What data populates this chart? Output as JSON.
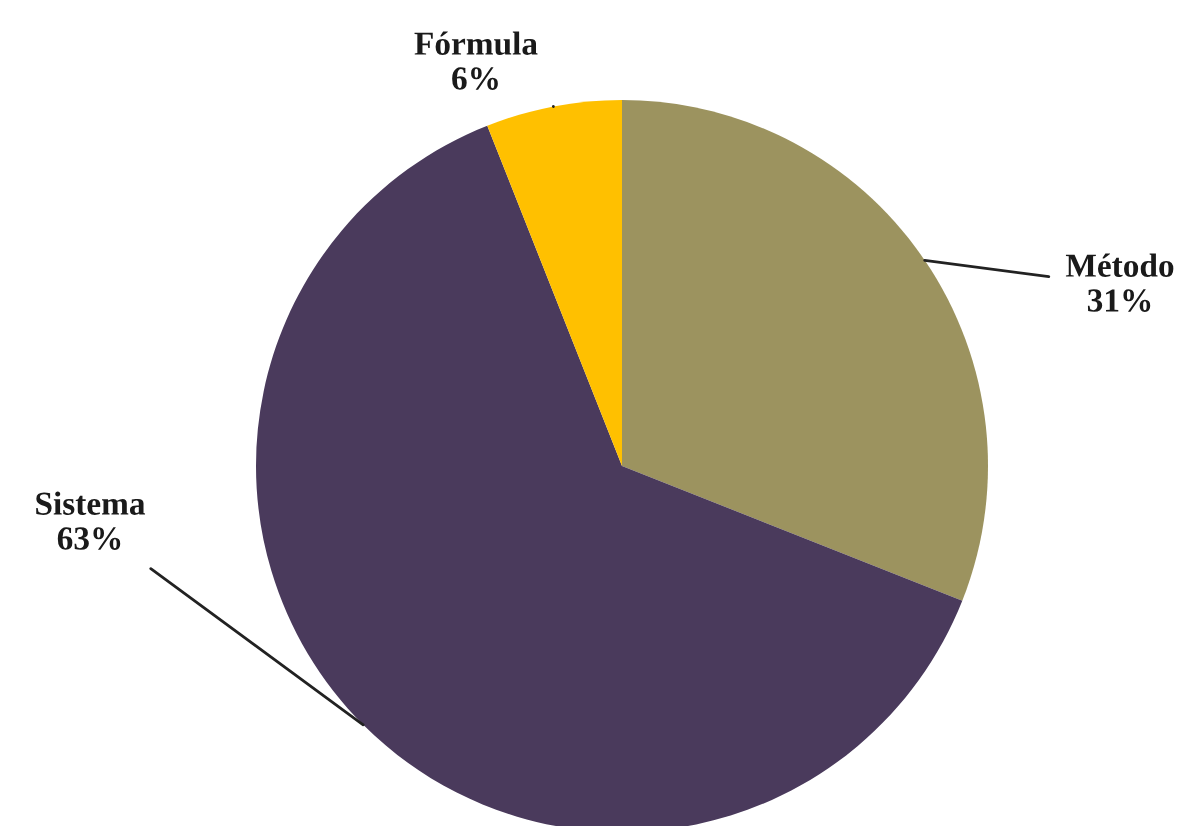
{
  "chart_data": {
    "type": "pie",
    "categories": [
      "Método",
      "Sistema",
      "Fórmula"
    ],
    "values": [
      31,
      63,
      6
    ],
    "colors": [
      "#9c935f",
      "#4a3a5c",
      "#ffc000"
    ],
    "value_labels": [
      "31%",
      "63%",
      "6%"
    ]
  }
}
